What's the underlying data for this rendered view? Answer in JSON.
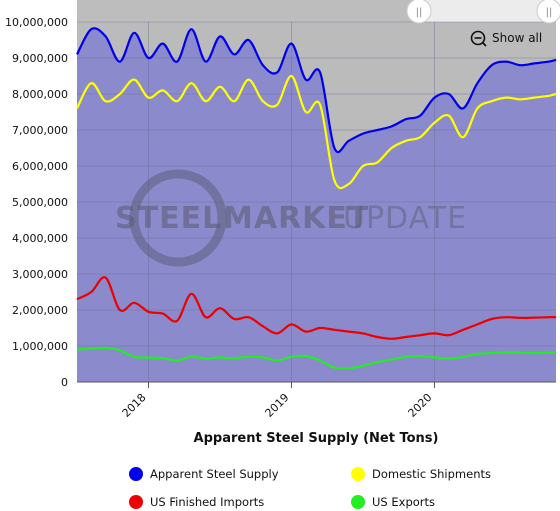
{
  "chart_data": {
    "type": "line",
    "title": "Apparent Steel Supply (Net Tons)",
    "xlabel": "",
    "ylabel": "",
    "y_ticks": [
      "0",
      "1,000,000",
      "2,000,000",
      "3,000,000",
      "4,000,000",
      "5,000,000",
      "6,000,000",
      "7,000,000",
      "8,000,000",
      "9,000,000",
      "10,000,000"
    ],
    "x_ticks": [
      "2018",
      "2019",
      "2020"
    ],
    "x_tick_values": [
      2018.0,
      2019.0,
      2020.0
    ],
    "ylim": [
      0,
      10000000
    ],
    "xlim": [
      2017.5,
      2020.85
    ],
    "legend_position": "bottom",
    "grid": true,
    "x": [
      2017.5,
      2017.6,
      2017.7,
      2017.8,
      2017.9,
      2018.0,
      2018.1,
      2018.2,
      2018.3,
      2018.4,
      2018.5,
      2018.6,
      2018.7,
      2018.8,
      2018.9,
      2019.0,
      2019.1,
      2019.2,
      2019.3,
      2019.4,
      2019.5,
      2019.6,
      2019.7,
      2019.8,
      2019.9,
      2020.0,
      2020.1,
      2020.2,
      2020.3,
      2020.4,
      2020.5,
      2020.6,
      2020.7,
      2020.8,
      2020.85
    ],
    "series": [
      {
        "name": "Apparent Steel Supply",
        "color": "#0000ee",
        "values": [
          9100000,
          9800000,
          9600000,
          8900000,
          9700000,
          9000000,
          9400000,
          8900000,
          9800000,
          8900000,
          9600000,
          9100000,
          9500000,
          8800000,
          8600000,
          9400000,
          8400000,
          8600000,
          6500000,
          6700000,
          6900000,
          7000000,
          7100000,
          7300000,
          7400000,
          7900000,
          8000000,
          7600000,
          8300000,
          8800000,
          8900000,
          8800000,
          8850000,
          8900000,
          8950000
        ]
      },
      {
        "name": "Domestic Shipments",
        "color": "#ffff00",
        "values": [
          7600000,
          8300000,
          7800000,
          8000000,
          8400000,
          7900000,
          8100000,
          7800000,
          8300000,
          7800000,
          8200000,
          7800000,
          8400000,
          7800000,
          7700000,
          8500000,
          7500000,
          7700000,
          5600000,
          5500000,
          6000000,
          6100000,
          6500000,
          6700000,
          6800000,
          7200000,
          7400000,
          6800000,
          7600000,
          7800000,
          7900000,
          7850000,
          7900000,
          7950000,
          8000000
        ]
      },
      {
        "name": "US Finished Imports",
        "color": "#ee0000",
        "values": [
          2300000,
          2500000,
          2900000,
          2000000,
          2200000,
          1950000,
          1900000,
          1700000,
          2450000,
          1800000,
          2050000,
          1750000,
          1800000,
          1550000,
          1350000,
          1600000,
          1400000,
          1500000,
          1450000,
          1400000,
          1350000,
          1250000,
          1200000,
          1250000,
          1300000,
          1350000,
          1300000,
          1450000,
          1600000,
          1750000,
          1800000,
          1780000,
          1790000,
          1800000,
          1800000
        ]
      },
      {
        "name": "US Exports",
        "color": "#22ee22",
        "values": [
          900000,
          930000,
          950000,
          880000,
          700000,
          680000,
          660000,
          600000,
          700000,
          650000,
          680000,
          660000,
          700000,
          680000,
          600000,
          700000,
          720000,
          600000,
          400000,
          380000,
          450000,
          550000,
          620000,
          700000,
          720000,
          680000,
          650000,
          700000,
          780000,
          800000,
          820000,
          810000,
          800000,
          810000,
          820000
        ]
      }
    ]
  },
  "watermark": {
    "word1": "STEEL",
    "word2": "MARKET",
    "word3": "UPDATE"
  },
  "controls": {
    "show_all": "Show all",
    "scroll_grip": "||"
  }
}
